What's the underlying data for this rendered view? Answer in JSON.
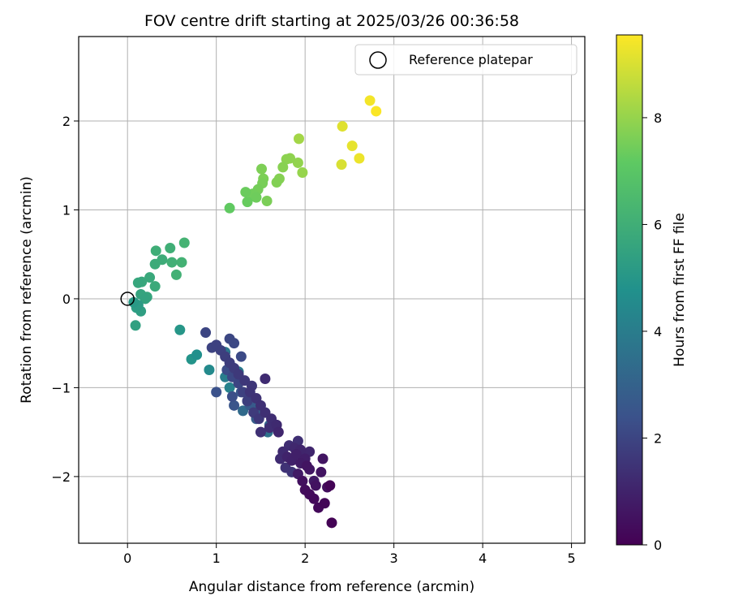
{
  "chart_data": {
    "type": "scatter",
    "title": "FOV centre drift starting at 2025/03/26 00:36:58",
    "xlabel": "Angular distance from reference (arcmin)",
    "ylabel": "Rotation from reference (arcmin)",
    "xlim": [
      -0.55,
      5.15
    ],
    "ylim": [
      -2.75,
      2.95
    ],
    "xticks": [
      0,
      1,
      2,
      3,
      4,
      5
    ],
    "yticks": [
      -2,
      -1,
      0,
      1,
      2
    ],
    "xtick_labels": [
      "0",
      "1",
      "2",
      "3",
      "4",
      "5"
    ],
    "ytick_labels": [
      "−2",
      "−1",
      "0",
      "1",
      "2"
    ],
    "grid": true,
    "legend": {
      "placement": "top-right",
      "label": "Reference platepar",
      "marker": "open-circle"
    },
    "reference_point": {
      "x": 0,
      "y": 0
    },
    "colorbar": {
      "label": "Hours from first FF file",
      "colormap": "viridis",
      "range": [
        0,
        9.55
      ],
      "ticks": [
        0,
        2,
        4,
        6,
        8
      ],
      "tick_labels": [
        "0",
        "2",
        "4",
        "6",
        "8"
      ]
    },
    "colors": {
      "viridis": [
        "#440154",
        "#3b528b",
        "#21918c",
        "#5ec962",
        "#fde725"
      ]
    },
    "points": [
      {
        "x": 2.3,
        "y": -2.52,
        "h": 0.05
      },
      {
        "x": 2.28,
        "y": -2.1,
        "h": 0.1
      },
      {
        "x": 2.22,
        "y": -2.3,
        "h": 0.15
      },
      {
        "x": 2.15,
        "y": -2.35,
        "h": 0.2
      },
      {
        "x": 2.1,
        "y": -2.25,
        "h": 0.25
      },
      {
        "x": 2.05,
        "y": -2.2,
        "h": 0.3
      },
      {
        "x": 2.0,
        "y": -2.15,
        "h": 0.35
      },
      {
        "x": 2.25,
        "y": -2.12,
        "h": 0.4
      },
      {
        "x": 1.97,
        "y": -2.05,
        "h": 0.45
      },
      {
        "x": 2.12,
        "y": -2.1,
        "h": 0.5
      },
      {
        "x": 2.18,
        "y": -1.95,
        "h": 0.55
      },
      {
        "x": 2.2,
        "y": -1.8,
        "h": 0.6
      },
      {
        "x": 2.05,
        "y": -1.92,
        "h": 0.65
      },
      {
        "x": 2.1,
        "y": -2.05,
        "h": 0.7
      },
      {
        "x": 1.92,
        "y": -1.97,
        "h": 0.75
      },
      {
        "x": 1.95,
        "y": -1.85,
        "h": 0.8
      },
      {
        "x": 2.0,
        "y": -1.8,
        "h": 0.85
      },
      {
        "x": 1.9,
        "y": -1.75,
        "h": 0.9
      },
      {
        "x": 1.85,
        "y": -1.82,
        "h": 0.95
      },
      {
        "x": 1.8,
        "y": -1.78,
        "h": 1.0
      },
      {
        "x": 1.95,
        "y": -1.7,
        "h": 1.05
      },
      {
        "x": 2.05,
        "y": -1.72,
        "h": 1.1
      },
      {
        "x": 1.88,
        "y": -1.68,
        "h": 1.15
      },
      {
        "x": 1.75,
        "y": -1.72,
        "h": 1.2
      },
      {
        "x": 1.72,
        "y": -1.8,
        "h": 1.25
      },
      {
        "x": 1.82,
        "y": -1.65,
        "h": 1.3
      },
      {
        "x": 1.92,
        "y": -1.6,
        "h": 1.35
      },
      {
        "x": 1.98,
        "y": -1.78,
        "h": 1.4
      },
      {
        "x": 1.78,
        "y": -1.9,
        "h": 1.45
      },
      {
        "x": 1.85,
        "y": -1.95,
        "h": 1.5
      },
      {
        "x": 2.02,
        "y": -1.88,
        "h": 0.58
      },
      {
        "x": 1.7,
        "y": -1.5,
        "h": 1.1
      },
      {
        "x": 1.68,
        "y": -1.42,
        "h": 1.2
      },
      {
        "x": 1.62,
        "y": -1.35,
        "h": 1.3
      },
      {
        "x": 1.55,
        "y": -1.28,
        "h": 1.35
      },
      {
        "x": 1.5,
        "y": -1.2,
        "h": 1.4
      },
      {
        "x": 1.45,
        "y": -1.12,
        "h": 1.45
      },
      {
        "x": 1.38,
        "y": -1.05,
        "h": 1.5
      },
      {
        "x": 1.4,
        "y": -0.98,
        "h": 1.55
      },
      {
        "x": 1.32,
        "y": -0.92,
        "h": 1.6
      },
      {
        "x": 1.25,
        "y": -0.85,
        "h": 1.65
      },
      {
        "x": 1.2,
        "y": -0.78,
        "h": 1.7
      },
      {
        "x": 1.15,
        "y": -0.72,
        "h": 1.75
      },
      {
        "x": 1.1,
        "y": -0.65,
        "h": 1.8
      },
      {
        "x": 1.05,
        "y": -0.58,
        "h": 1.85
      },
      {
        "x": 1.0,
        "y": -0.52,
        "h": 1.9
      },
      {
        "x": 0.95,
        "y": -0.55,
        "h": 1.95
      },
      {
        "x": 0.88,
        "y": -0.38,
        "h": 2.0
      },
      {
        "x": 1.15,
        "y": -0.45,
        "h": 2.05
      },
      {
        "x": 1.2,
        "y": -0.5,
        "h": 2.1
      },
      {
        "x": 1.28,
        "y": -0.65,
        "h": 2.15
      },
      {
        "x": 1.55,
        "y": -0.9,
        "h": 1.25
      },
      {
        "x": 1.5,
        "y": -1.5,
        "h": 1.4
      },
      {
        "x": 1.6,
        "y": -1.45,
        "h": 1.3
      },
      {
        "x": 1.48,
        "y": -1.35,
        "h": 1.6
      },
      {
        "x": 1.42,
        "y": -1.28,
        "h": 1.7
      },
      {
        "x": 1.35,
        "y": -1.15,
        "h": 1.8
      },
      {
        "x": 1.3,
        "y": -1.05,
        "h": 1.9
      },
      {
        "x": 1.25,
        "y": -0.95,
        "h": 2.0
      },
      {
        "x": 1.18,
        "y": -0.88,
        "h": 2.1
      },
      {
        "x": 1.12,
        "y": -0.8,
        "h": 2.2
      },
      {
        "x": 1.18,
        "y": -1.1,
        "h": 2.3
      },
      {
        "x": 1.0,
        "y": -1.05,
        "h": 2.4
      },
      {
        "x": 1.2,
        "y": -1.2,
        "h": 2.5
      },
      {
        "x": 1.28,
        "y": -1.05,
        "h": 2.6
      },
      {
        "x": 1.38,
        "y": -1.2,
        "h": 2.7
      },
      {
        "x": 1.45,
        "y": -1.35,
        "h": 2.8
      },
      {
        "x": 1.55,
        "y": -1.28,
        "h": 2.9
      },
      {
        "x": 1.6,
        "y": -1.42,
        "h": 3.0
      },
      {
        "x": 1.5,
        "y": -1.25,
        "h": 3.1
      },
      {
        "x": 1.35,
        "y": -1.15,
        "h": 3.2
      },
      {
        "x": 1.3,
        "y": -1.26,
        "h": 3.3
      },
      {
        "x": 1.4,
        "y": -1.12,
        "h": 3.4
      },
      {
        "x": 1.45,
        "y": -1.18,
        "h": 3.5
      },
      {
        "x": 1.58,
        "y": -1.5,
        "h": 3.6
      },
      {
        "x": 1.1,
        "y": -0.6,
        "h": 3.75
      },
      {
        "x": 1.25,
        "y": -0.82,
        "h": 3.9
      },
      {
        "x": 1.1,
        "y": -0.88,
        "h": 4.0
      },
      {
        "x": 1.15,
        "y": -1.0,
        "h": 4.2
      },
      {
        "x": 0.92,
        "y": -0.8,
        "h": 4.5
      },
      {
        "x": 0.78,
        "y": -0.63,
        "h": 4.75
      },
      {
        "x": 0.72,
        "y": -0.68,
        "h": 4.9
      },
      {
        "x": 0.59,
        "y": -0.35,
        "h": 5.0
      },
      {
        "x": 0.07,
        "y": -0.04,
        "h": 5.1
      },
      {
        "x": 0.12,
        "y": -0.07,
        "h": 5.2
      },
      {
        "x": 0.1,
        "y": -0.1,
        "h": 5.3
      },
      {
        "x": 0.15,
        "y": -0.14,
        "h": 5.35
      },
      {
        "x": 0.09,
        "y": -0.3,
        "h": 5.4
      },
      {
        "x": 0.2,
        "y": 0.0,
        "h": 5.5
      },
      {
        "x": 0.15,
        "y": 0.05,
        "h": 5.55
      },
      {
        "x": 0.22,
        "y": 0.02,
        "h": 5.6
      },
      {
        "x": 0.12,
        "y": 0.18,
        "h": 5.65
      },
      {
        "x": 0.16,
        "y": 0.19,
        "h": 5.7
      },
      {
        "x": 0.25,
        "y": 0.24,
        "h": 5.75
      },
      {
        "x": 0.31,
        "y": 0.14,
        "h": 5.8
      },
      {
        "x": 0.31,
        "y": 0.39,
        "h": 5.85
      },
      {
        "x": 0.39,
        "y": 0.44,
        "h": 5.9
      },
      {
        "x": 0.32,
        "y": 0.54,
        "h": 5.95
      },
      {
        "x": 0.48,
        "y": 0.57,
        "h": 6.0
      },
      {
        "x": 0.5,
        "y": 0.41,
        "h": 6.05
      },
      {
        "x": 0.55,
        "y": 0.27,
        "h": 6.1
      },
      {
        "x": 0.61,
        "y": 0.41,
        "h": 6.15
      },
      {
        "x": 0.64,
        "y": 0.63,
        "h": 6.2
      },
      {
        "x": 1.15,
        "y": 1.02,
        "h": 7.2
      },
      {
        "x": 1.35,
        "y": 1.09,
        "h": 7.3
      },
      {
        "x": 1.33,
        "y": 1.2,
        "h": 7.35
      },
      {
        "x": 1.45,
        "y": 1.14,
        "h": 7.4
      },
      {
        "x": 1.41,
        "y": 1.18,
        "h": 7.45
      },
      {
        "x": 1.47,
        "y": 1.23,
        "h": 7.5
      },
      {
        "x": 1.52,
        "y": 1.3,
        "h": 7.55
      },
      {
        "x": 1.57,
        "y": 1.1,
        "h": 7.6
      },
      {
        "x": 1.53,
        "y": 1.35,
        "h": 7.62
      },
      {
        "x": 1.51,
        "y": 1.46,
        "h": 7.65
      },
      {
        "x": 1.68,
        "y": 1.31,
        "h": 7.7
      },
      {
        "x": 1.71,
        "y": 1.35,
        "h": 7.75
      },
      {
        "x": 1.75,
        "y": 1.48,
        "h": 7.8
      },
      {
        "x": 1.79,
        "y": 1.57,
        "h": 7.85
      },
      {
        "x": 1.83,
        "y": 1.58,
        "h": 7.9
      },
      {
        "x": 1.92,
        "y": 1.53,
        "h": 7.95
      },
      {
        "x": 1.97,
        "y": 1.42,
        "h": 8.0
      },
      {
        "x": 1.93,
        "y": 1.8,
        "h": 8.2
      },
      {
        "x": 2.41,
        "y": 1.51,
        "h": 9.0
      },
      {
        "x": 2.42,
        "y": 1.94,
        "h": 9.1
      },
      {
        "x": 2.53,
        "y": 1.72,
        "h": 9.2
      },
      {
        "x": 2.61,
        "y": 1.58,
        "h": 9.3
      },
      {
        "x": 2.73,
        "y": 2.23,
        "h": 9.4
      },
      {
        "x": 2.8,
        "y": 2.11,
        "h": 9.5
      }
    ]
  }
}
